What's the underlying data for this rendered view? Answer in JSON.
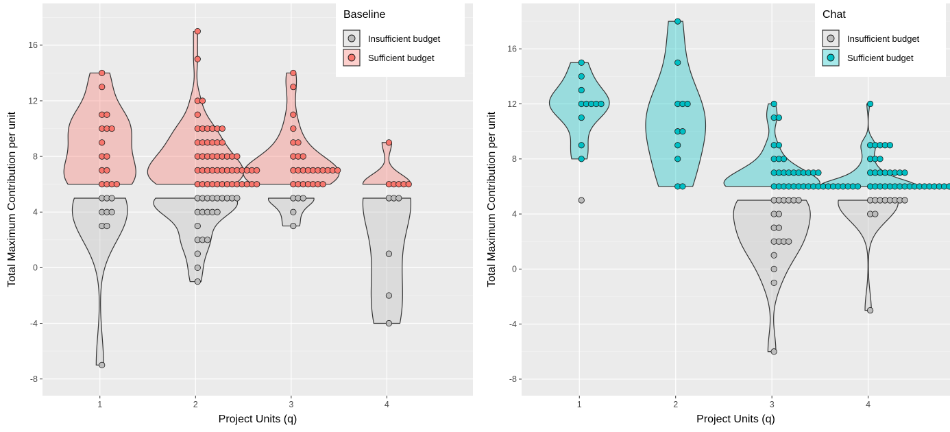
{
  "chart_data": [
    {
      "type": "violin",
      "panel": "left",
      "xlabel": "Project Units (q)",
      "ylabel": "Total Maximum Contribution per unit",
      "x_ticks": [
        "1",
        "2",
        "3",
        "4"
      ],
      "y_ticks": [
        "-8",
        "-4",
        "0",
        "4",
        "8",
        "12",
        "16"
      ],
      "ylim": [
        -9.2,
        19.0
      ],
      "xlim": [
        0.4,
        4.9
      ],
      "grid": true,
      "legend": {
        "title": "Baseline",
        "position": "top-right",
        "entries": [
          {
            "label": "Insufficient budget",
            "color": "#bdbdbd"
          },
          {
            "label": "Sufficient budget",
            "color": "#f8766d"
          }
        ]
      },
      "series": [
        {
          "name": "Insufficient budget",
          "color": "#bdbdbd",
          "groups": [
            {
              "x": 1,
              "points": [
                5,
                5,
                5,
                4,
                4,
                4,
                3,
                3,
                -7
              ]
            },
            {
              "x": 2,
              "points": [
                5,
                5,
                5,
                5,
                5,
                5,
                5,
                5,
                5,
                4,
                4,
                4,
                4,
                4,
                3,
                2,
                2,
                2,
                1,
                0,
                -1
              ]
            },
            {
              "x": 3,
              "points": [
                5,
                5,
                5,
                4,
                3
              ]
            },
            {
              "x": 4,
              "points": [
                5,
                5,
                5,
                1,
                -2,
                -4
              ]
            }
          ]
        },
        {
          "name": "Sufficient budget",
          "color": "#f8766d",
          "groups": [
            {
              "x": 1,
              "points": [
                14,
                13,
                11,
                11,
                10,
                10,
                10,
                9,
                8,
                8,
                7,
                7,
                6,
                6,
                6,
                6
              ]
            },
            {
              "x": 2,
              "points": [
                17,
                15,
                12,
                12,
                11,
                10,
                10,
                10,
                10,
                10,
                10,
                9,
                9,
                9,
                9,
                9,
                9,
                8,
                8,
                8,
                8,
                8,
                8,
                8,
                8,
                8,
                7,
                7,
                7,
                7,
                7,
                7,
                7,
                7,
                7,
                7,
                7,
                7,
                7,
                6,
                6,
                6,
                6,
                6,
                6,
                6,
                6,
                6,
                6,
                6,
                6,
                6
              ]
            },
            {
              "x": 3,
              "points": [
                14,
                13,
                11,
                10,
                9,
                9,
                8,
                8,
                8,
                7,
                7,
                7,
                7,
                7,
                7,
                7,
                7,
                7,
                7,
                6,
                6,
                6,
                6,
                6,
                6,
                6
              ]
            },
            {
              "x": 4,
              "points": [
                9,
                6,
                6,
                6,
                6,
                6
              ]
            }
          ]
        }
      ]
    },
    {
      "type": "violin",
      "panel": "right",
      "xlabel": "Project Units (q)",
      "ylabel": "Total Maximum Contribution per unit",
      "x_ticks": [
        "1",
        "2",
        "3",
        "4"
      ],
      "y_ticks": [
        "-8",
        "-4",
        "0",
        "4",
        "8",
        "12",
        "16"
      ],
      "ylim": [
        -9.2,
        19.3
      ],
      "xlim": [
        0.4,
        4.85
      ],
      "grid": true,
      "legend": {
        "title": "Chat",
        "position": "top-right",
        "entries": [
          {
            "label": "Insufficient budget",
            "color": "#bdbdbd"
          },
          {
            "label": "Sufficient budget",
            "color": "#00bfc4"
          }
        ]
      },
      "series": [
        {
          "name": "Insufficient budget",
          "color": "#bdbdbd",
          "groups": [
            {
              "x": 1,
              "points": [
                5
              ]
            },
            {
              "x": 3,
              "points": [
                5,
                5,
                5,
                5,
                5,
                5,
                4,
                4,
                3,
                3,
                2,
                2,
                2,
                2,
                1,
                0,
                -1,
                -6
              ]
            },
            {
              "x": 4,
              "points": [
                5,
                5,
                5,
                5,
                5,
                5,
                5,
                5,
                4,
                4,
                -3
              ]
            }
          ]
        },
        {
          "name": "Sufficient budget",
          "color": "#00bfc4",
          "groups": [
            {
              "x": 1,
              "points": [
                15,
                14,
                13,
                12,
                12,
                12,
                12,
                12,
                11,
                9,
                8
              ]
            },
            {
              "x": 2,
              "points": [
                18,
                15,
                12,
                12,
                12,
                10,
                10,
                9,
                8,
                6,
                6
              ]
            },
            {
              "x": 3,
              "points": [
                12,
                11,
                11,
                9,
                9,
                8,
                8,
                8,
                7,
                7,
                7,
                7,
                7,
                7,
                7,
                7,
                7,
                7,
                6,
                6,
                6,
                6,
                6,
                6,
                6,
                6,
                6,
                6,
                6,
                6,
                6,
                6,
                6,
                6,
                6,
                6
              ]
            },
            {
              "x": 4,
              "points": [
                12,
                9,
                9,
                9,
                9,
                9,
                8,
                8,
                8,
                7,
                7,
                7,
                7,
                7,
                7,
                7,
                7,
                6,
                6,
                6,
                6,
                6,
                6,
                6,
                6,
                6,
                6,
                6,
                6,
                6,
                6,
                6,
                6,
                6,
                6,
                6,
                6,
                6,
                6,
                6,
                6,
                6,
                6,
                6,
                6,
                6,
                6,
                6,
                6,
                6,
                6,
                6
              ]
            }
          ]
        }
      ]
    }
  ]
}
